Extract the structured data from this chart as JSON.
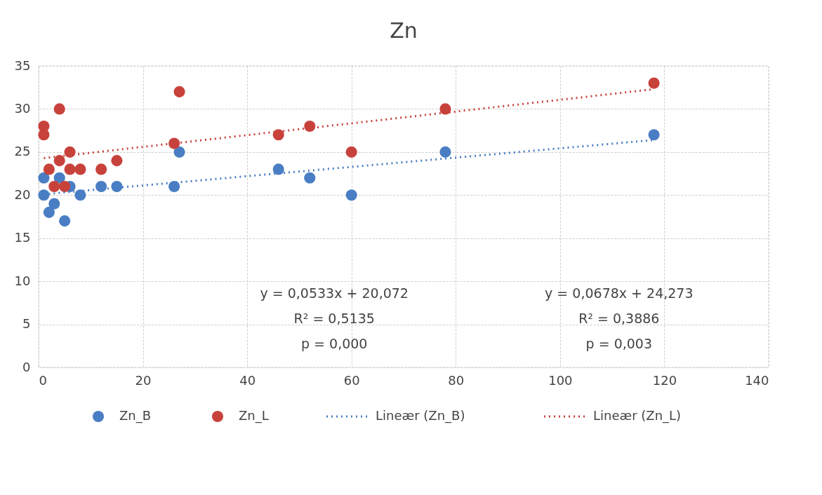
{
  "chart_data": {
    "type": "scatter",
    "title": "Zn",
    "xlim": [
      0,
      140
    ],
    "xticks": [
      0,
      20,
      40,
      60,
      80,
      100,
      120,
      140
    ],
    "ylim": [
      0,
      35
    ],
    "yticks": [
      0,
      5,
      10,
      15,
      20,
      25,
      30,
      35
    ],
    "grid": true,
    "legend": "bottom",
    "marker": "circle",
    "series": [
      {
        "name": "Zn_B",
        "color": "#4a7ec4",
        "x": [
          1,
          1,
          2,
          3,
          4,
          5,
          6,
          8,
          12,
          15,
          26,
          27,
          46,
          52,
          60,
          78,
          118
        ],
        "values": [
          22,
          20,
          18,
          19,
          22,
          17,
          21,
          20,
          21,
          21,
          21,
          25,
          23,
          22,
          20,
          25,
          27
        ]
      },
      {
        "name": "Zn_L",
        "color": "#c8423c",
        "x": [
          1,
          1,
          2,
          3,
          4,
          4,
          5,
          6,
          6,
          8,
          12,
          15,
          26,
          27,
          46,
          52,
          60,
          78,
          118
        ],
        "values": [
          28,
          27,
          23,
          21,
          30,
          24,
          21,
          25,
          23,
          23,
          23,
          24,
          26,
          32,
          27,
          28,
          25,
          30,
          33
        ]
      },
      {
        "name": "Lineær (Zn_B)",
        "type": "line",
        "line_style": "dotted",
        "marker": "none",
        "color": "#4a7ec4",
        "x": [
          1,
          118
        ],
        "values": [
          20.1,
          26.4
        ]
      },
      {
        "name": "Lineær (Zn_L)",
        "type": "line",
        "line_style": "dotted",
        "marker": "none",
        "color": "#c8423c",
        "x": [
          1,
          118
        ],
        "values": [
          24.3,
          32.3
        ]
      }
    ],
    "annotations": [
      "y = 0,0533x + 20,072\nR² = 0,5135\np = 0,000",
      "y = 0,0678x + 24,273\nR² = 0,3886\np = 0,003"
    ]
  }
}
